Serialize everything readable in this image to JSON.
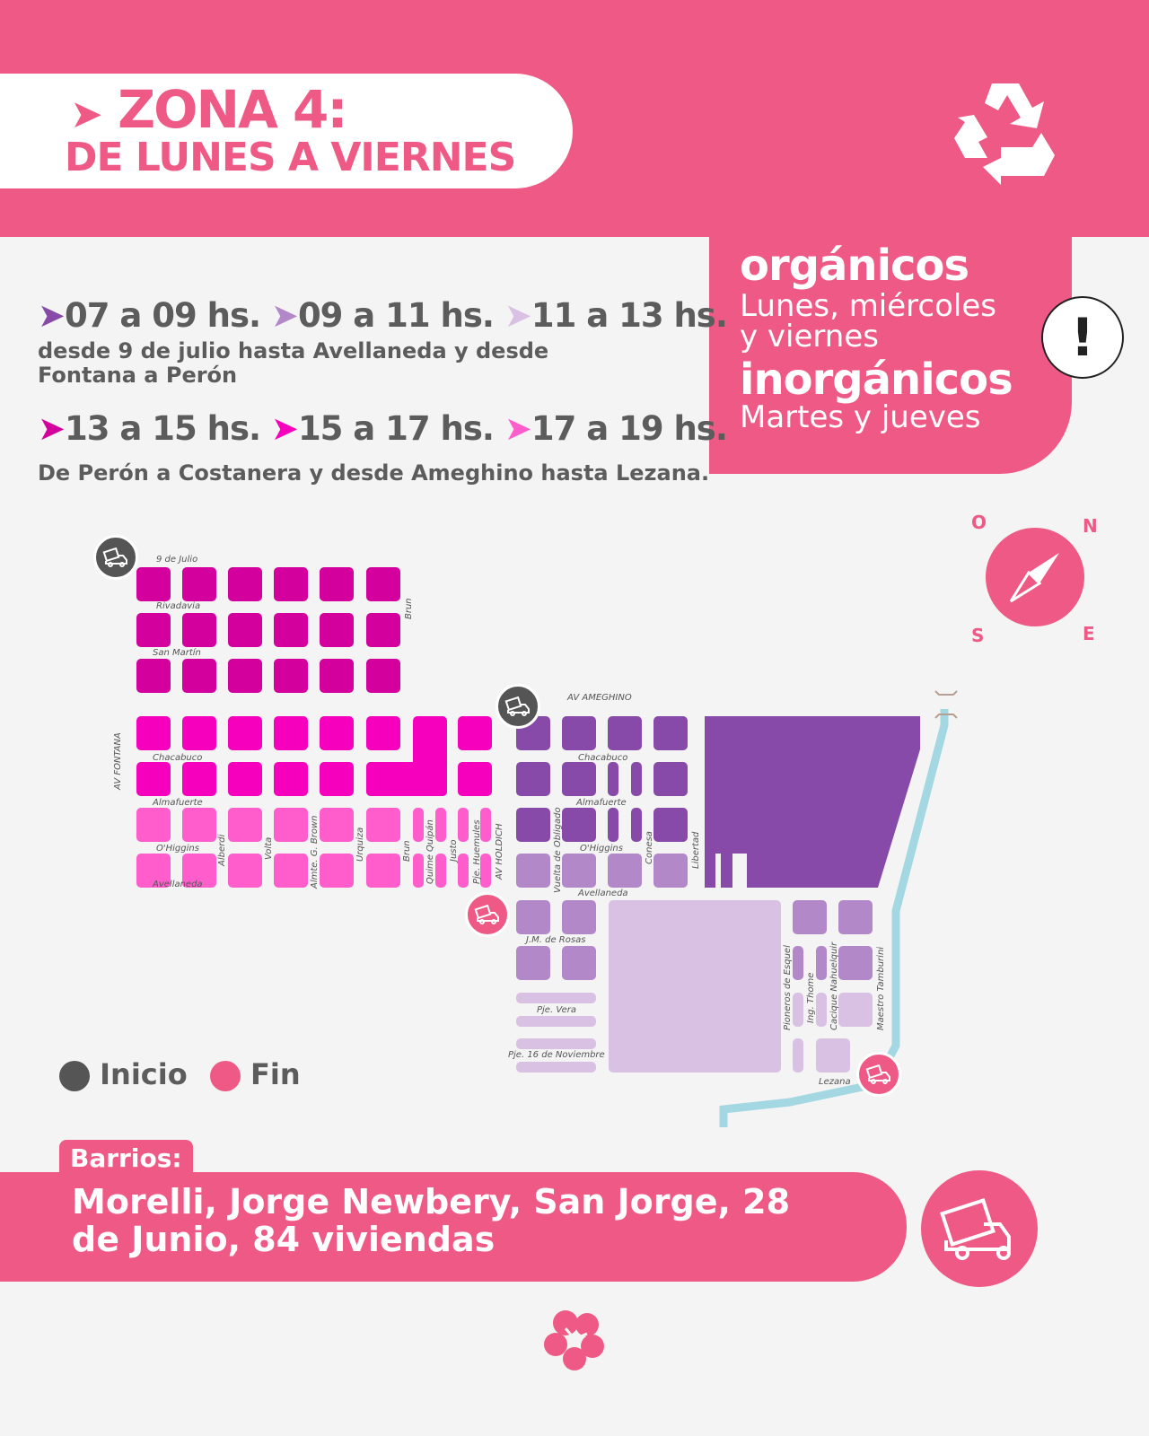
{
  "header": {
    "title_line1": "ZONA 4:",
    "title_line2": "DE LUNES A VIERNES",
    "arrow": "›",
    "icon": "recycle-icon"
  },
  "days": {
    "organic_title": "orgánicos",
    "organic_days": [
      "Lunes, miércoles",
      "y viernes"
    ],
    "inorganic_title": "inorgánicos",
    "inorganic_days": "Martes y jueves",
    "alert": "!"
  },
  "schedule": {
    "group1": {
      "slots": [
        "07 a 09 hs.",
        "09 a 11 hs.",
        "11 a 13 hs."
      ],
      "colors": [
        "#874aa8",
        "#b388c9",
        "#d9c1e4"
      ],
      "description": [
        "desde 9 de julio hasta Avellaneda y desde",
        "Fontana a Perón"
      ]
    },
    "group2": {
      "slots": [
        "13 a 15 hs.",
        "15 a 17 hs.",
        "17 a 19 hs."
      ],
      "colors": [
        "#d4009e",
        "#f700bd",
        "#ff5ccc"
      ],
      "description": "De Perón a Costanera y desde Ameghino hasta Lezana."
    }
  },
  "compass": {
    "n": "N",
    "s": "S",
    "e": "E",
    "o": "O"
  },
  "map": {
    "streets": [
      "9 de Julio",
      "Rivadavia",
      "San Martín",
      "Brun",
      "AV FONTANA",
      "Chacabuco",
      "Almafuerte",
      "O'Higgins",
      "Avellaneda",
      "Alberdi",
      "Volta",
      "Almte. G. Brown",
      "Urquiza",
      "Brun",
      "Quime Quipán",
      "Justo",
      "Pje. Huemules",
      "AV HOLDICH",
      "AV AMEGHINO",
      "Chacabuco",
      "Almafuerte",
      "O'Higgins",
      "Vuelta de Obligado",
      "Conesa",
      "Libertad",
      "Avellaneda",
      "J.M. de Rosas",
      "Pje. Vera",
      "Pje. 16 de Noviembre",
      "Pioneros de Esquel",
      "Ing. Thome",
      "Cacique Nahuelquir",
      "Maestro Tamburini",
      "Lezana"
    ],
    "river_color": "#a3d8e2"
  },
  "legend": {
    "start": "Inicio",
    "end": "Fin",
    "start_color": "#555555",
    "end_color": "#ee5a85"
  },
  "barrios": {
    "label": "Barrios:",
    "list": "Morelli, Jorge Newbery, San Jorge, 28 de Junio, 84 viviendas"
  },
  "colors": {
    "brand": "#ee5a85",
    "background": "#f4f4f4"
  }
}
